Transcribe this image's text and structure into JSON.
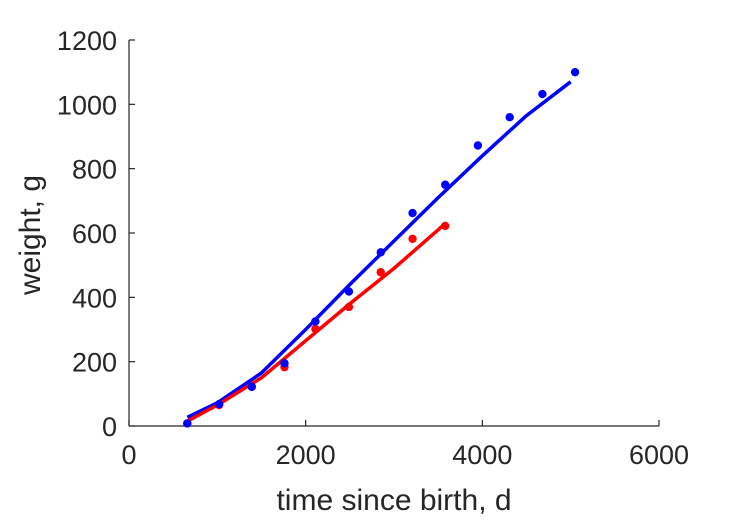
{
  "chart_data": {
    "type": "scatter",
    "title": "",
    "xlabel": "time since birth, d",
    "ylabel": "weight, g",
    "xlim": [
      0,
      6000
    ],
    "ylim": [
      0,
      1200
    ],
    "xticks": [
      0,
      2000,
      4000,
      6000
    ],
    "yticks": [
      0,
      200,
      400,
      600,
      800,
      1000,
      1200
    ],
    "grid": false,
    "legend": "none",
    "series": [
      {
        "color": "#0000FF",
        "points": {
          "x": [
            660,
            1020,
            1390,
            1760,
            2110,
            2490,
            2850,
            3210,
            3580,
            3950,
            4310,
            4680,
            5050
          ],
          "y": [
            8,
            68,
            122,
            195,
            325,
            418,
            540,
            662,
            750,
            872,
            960,
            1032,
            1100
          ]
        },
        "fit": {
          "x": [
            660,
            1000,
            1500,
            2000,
            2500,
            3000,
            3500,
            4000,
            4500,
            5000
          ],
          "y": [
            27,
            72,
            165,
            300,
            440,
            575,
            710,
            840,
            965,
            1070
          ]
        }
      },
      {
        "color": "#FF0000",
        "points": {
          "x": [
            660,
            1020,
            1390,
            1760,
            2110,
            2490,
            2850,
            3210,
            3580
          ],
          "y": [
            8,
            65,
            122,
            183,
            302,
            370,
            478,
            582,
            622
          ]
        },
        "fit": {
          "x": [
            660,
            1000,
            1500,
            2000,
            2500,
            3000,
            3500,
            3580
          ],
          "y": [
            15,
            65,
            150,
            265,
            380,
            490,
            610,
            630
          ]
        }
      }
    ]
  }
}
